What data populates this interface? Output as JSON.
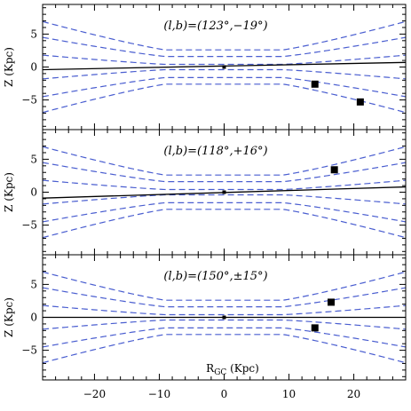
{
  "chart_data": [
    {
      "type": "line",
      "annotation": "(l,b)=(123°,−19°)",
      "ylabel": "Z (Kpc)",
      "xlabel": "",
      "xlim": [
        -28,
        28
      ],
      "ylim": [
        -9.5,
        9.5
      ],
      "yticks": [
        {
          "value": -5,
          "label": "−5"
        },
        {
          "value": 0,
          "label": "0"
        },
        {
          "value": 5,
          "label": "5"
        }
      ],
      "xticks": [
        {
          "value": -20,
          "label": "−20"
        },
        {
          "value": -10,
          "label": "−10"
        },
        {
          "value": 0,
          "label": "0"
        },
        {
          "value": 10,
          "label": "10"
        },
        {
          "value": 20,
          "label": "20"
        }
      ],
      "line_of_sight": {
        "x": [
          -28,
          28
        ],
        "y": [
          -0.4,
          0.7
        ]
      },
      "sun": {
        "x": 0,
        "y": 0
      },
      "points": [
        {
          "x": 14,
          "y": -2.6
        },
        {
          "x": 21,
          "y": -5.3
        }
      ]
    },
    {
      "type": "line",
      "annotation": "(l,b)=(118°,+16°)",
      "ylabel": "Z (Kpc)",
      "xlabel": "",
      "xlim": [
        -28,
        28
      ],
      "ylim": [
        -9.5,
        9.5
      ],
      "yticks": [
        {
          "value": -5,
          "label": "−5"
        },
        {
          "value": 0,
          "label": "0"
        },
        {
          "value": 5,
          "label": "5"
        }
      ],
      "xticks": [
        {
          "value": -20,
          "label": "−20"
        },
        {
          "value": -10,
          "label": "−10"
        },
        {
          "value": 0,
          "label": "0"
        },
        {
          "value": 10,
          "label": "10"
        },
        {
          "value": 20,
          "label": "20"
        }
      ],
      "line_of_sight": {
        "x": [
          -28,
          28
        ],
        "y": [
          -0.9,
          0.8
        ]
      },
      "sun": {
        "x": 0,
        "y": 0
      },
      "points": [
        {
          "x": 17,
          "y": 3.4
        }
      ]
    },
    {
      "type": "line",
      "annotation": "(l,b)=(150°,±15°)",
      "ylabel": "Z (Kpc)",
      "xlabel": "R GC (Kpc)",
      "xlabel_main": "R",
      "xlabel_sub": "GC",
      "xlabel_unit": " (Kpc)",
      "xlim": [
        -28,
        28
      ],
      "ylim": [
        -9.5,
        9.5
      ],
      "yticks": [
        {
          "value": -5,
          "label": "−5"
        },
        {
          "value": 0,
          "label": "0"
        },
        {
          "value": 5,
          "label": "5"
        }
      ],
      "xticks": [
        {
          "value": -20,
          "label": "−20"
        },
        {
          "value": -10,
          "label": "−10"
        },
        {
          "value": 0,
          "label": "0"
        },
        {
          "value": 10,
          "label": "10"
        },
        {
          "value": 20,
          "label": "20"
        }
      ],
      "line_of_sight": {
        "x": [
          -28,
          28
        ],
        "y": [
          0,
          0
        ]
      },
      "sun": {
        "x": 0,
        "y": 0
      },
      "points": [
        {
          "x": 16.5,
          "y": 2.3
        },
        {
          "x": 14,
          "y": -1.6
        }
      ]
    }
  ],
  "disk_model": {
    "kind": "flared disk contours",
    "line_color": "#4a5ed0",
    "line_style": "dashed",
    "flat_radius_kpc": 9,
    "inner_heights_kpc": [
      0.4,
      1.6,
      2.6
    ],
    "outer_heights_kpc": [
      1.8,
      4.5,
      6.9
    ]
  },
  "colors": {
    "axis": "#000000",
    "marker": "#000000",
    "contour": "#4a5ed0"
  }
}
